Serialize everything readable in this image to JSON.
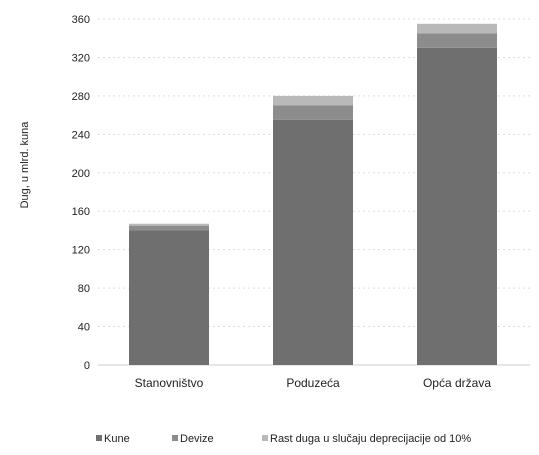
{
  "chart_data": {
    "type": "bar",
    "stacked": true,
    "categories": [
      "Stanovništvo",
      "Poduzeća",
      "Opća država"
    ],
    "series": [
      {
        "name": "Kune",
        "values": [
          140,
          255,
          330
        ],
        "color": "#6f6f6f"
      },
      {
        "name": "Devize",
        "values": [
          5,
          15,
          15
        ],
        "color": "#8c8c8c"
      },
      {
        "name": "Rast duga u slučaju deprecijacije od 10%",
        "values": [
          2,
          10,
          10
        ],
        "color": "#b9b9b9"
      }
    ],
    "ylabel": "Dug, u mlrd. kuna",
    "ylim": [
      0,
      360
    ],
    "yticks": [
      0,
      40,
      80,
      120,
      160,
      200,
      240,
      280,
      320,
      360
    ],
    "grid": true,
    "legend_position": "bottom"
  }
}
